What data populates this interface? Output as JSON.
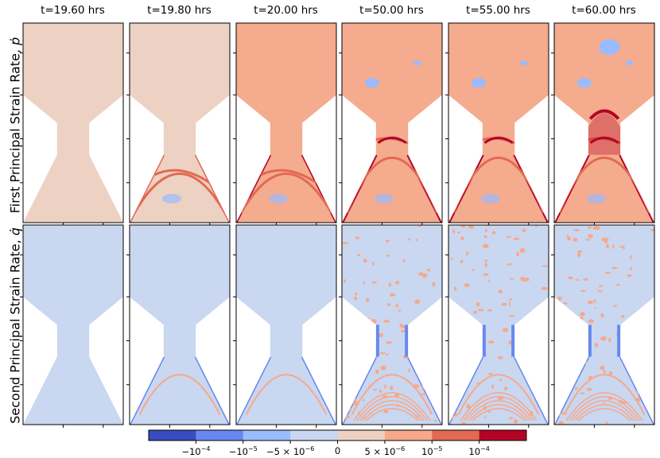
{
  "chart_data": {
    "type": "heatmap",
    "description_panels": "2x6 grid of strain-rate fields on an hourglass specimen",
    "column_titles": [
      "t=19.60 hrs",
      "t=19.80 hrs",
      "t=20.00 hrs",
      "t=50.00 hrs",
      "t=55.00 hrs",
      "t=60.00 hrs"
    ],
    "row_labels": [
      {
        "text": "First Principal Strain Rate, ",
        "symbol": "ṗ"
      },
      {
        "text": "Second Principal Strain Rate, ",
        "symbol": "q̇"
      }
    ],
    "colorbar": {
      "bins": 8,
      "colors": [
        "#3b4cc0",
        "#6788ee",
        "#9abbff",
        "#c9d7f0",
        "#edd1c2",
        "#f7a889",
        "#e26952",
        "#b40426"
      ],
      "tick_labels": [
        {
          "base": "−10",
          "exp": "−4"
        },
        {
          "base": "−10",
          "exp": "−5"
        },
        {
          "base": "−5 × 10",
          "exp": "−6"
        },
        {
          "base": "0",
          "exp": ""
        },
        {
          "base": "5 × 10",
          "exp": "−6"
        },
        {
          "base": "10",
          "exp": "−5"
        },
        {
          "base": "10",
          "exp": "−4"
        }
      ]
    },
    "row1_background_colors": [
      "#edd1c2",
      "#edd1c2",
      "#f4ab8e",
      "#f4ab8e",
      "#f4ab8e",
      "#f4ab8e"
    ],
    "row2_background_colors": [
      "#c9d7f0",
      "#c9d7f0",
      "#c9d7f0",
      "#c9d7f0",
      "#c9d7f0",
      "#c9d7f0"
    ],
    "band_color_strong": "#b40426",
    "band_color_mid": "#e26952",
    "blue_patch_color": "#9abbff"
  }
}
